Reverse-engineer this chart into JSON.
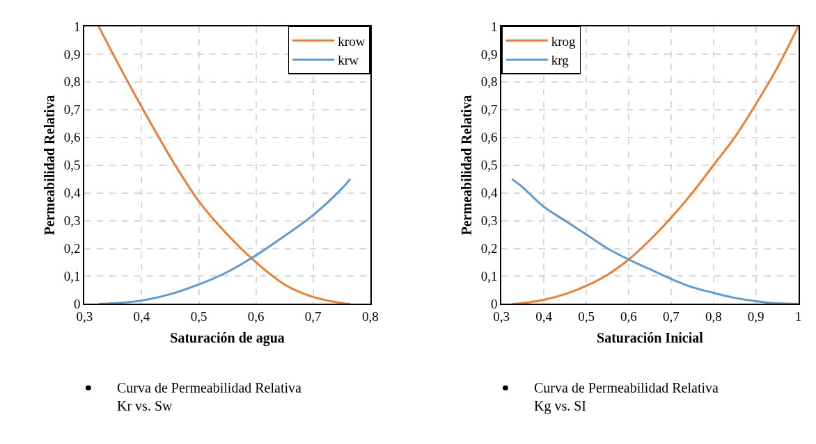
{
  "chart_data": [
    {
      "type": "line",
      "xlabel": "Saturación de agua",
      "ylabel": "Permeabilidad Relativa",
      "xlim": [
        0.3,
        0.8
      ],
      "xticks": [
        {
          "value": 0.3,
          "label": "0,3"
        },
        {
          "value": 0.4,
          "label": "0,4"
        },
        {
          "value": 0.5,
          "label": "0,5"
        },
        {
          "value": 0.6,
          "label": "0,6"
        },
        {
          "value": 0.7,
          "label": "0,7"
        },
        {
          "value": 0.8,
          "label": "0,8"
        }
      ],
      "ylim": [
        0,
        1
      ],
      "yticks": [
        0,
        {
          "value": 0.1,
          "label": "0,1"
        },
        {
          "value": 0.2,
          "label": "0,2"
        },
        {
          "value": 0.3,
          "label": "0,3"
        },
        {
          "value": 0.4,
          "label": "0,4"
        },
        {
          "value": 0.5,
          "label": "0,5"
        },
        {
          "value": 0.6,
          "label": "0,6"
        },
        {
          "value": 0.7,
          "label": "0,7"
        },
        {
          "value": 0.8,
          "label": "0,8"
        },
        {
          "value": 0.9,
          "label": "0,9"
        },
        1
      ],
      "grid": true,
      "legend": "top right",
      "line_style": "solid",
      "marker": "none",
      "x": [
        0.325,
        0.35,
        0.4,
        0.45,
        0.5,
        0.55,
        0.6,
        0.65,
        0.7,
        0.75,
        0.765
      ],
      "series": [
        {
          "name": "krow",
          "color": "#ed7d31",
          "values": [
            1.0,
            0.9,
            0.71,
            0.53,
            0.37,
            0.25,
            0.15,
            0.07,
            0.025,
            0.003,
            0.0
          ]
        },
        {
          "name": "krw",
          "color": "#5b9bd5",
          "values": [
            0.0,
            0.002,
            0.012,
            0.035,
            0.07,
            0.115,
            0.175,
            0.245,
            0.32,
            0.415,
            0.45
          ]
        }
      ],
      "annotations": [
        "Curva de Permeabilidad Relativa\nKr vs. Sw"
      ]
    },
    {
      "type": "line",
      "xlabel": "Saturación Inicial",
      "ylabel": "Permeabilidad Relativa",
      "xlim": [
        0.3,
        1
      ],
      "xticks": [
        {
          "value": 0.3,
          "label": "0,3"
        },
        {
          "value": 0.4,
          "label": "0,4"
        },
        {
          "value": 0.5,
          "label": "0,5"
        },
        {
          "value": 0.6,
          "label": "0,6"
        },
        {
          "value": 0.7,
          "label": "0,7"
        },
        {
          "value": 0.8,
          "label": "0,8"
        },
        {
          "value": 0.9,
          "label": "0,9"
        },
        1
      ],
      "ylim": [
        0,
        1
      ],
      "yticks": [
        0,
        {
          "value": 0.1,
          "label": "0,1"
        },
        {
          "value": 0.2,
          "label": "0,2"
        },
        {
          "value": 0.3,
          "label": "0,3"
        },
        {
          "value": 0.4,
          "label": "0,4"
        },
        {
          "value": 0.5,
          "label": "0,5"
        },
        {
          "value": 0.6,
          "label": "0,6"
        },
        {
          "value": 0.7,
          "label": "0,7"
        },
        {
          "value": 0.8,
          "label": "0,8"
        },
        {
          "value": 0.9,
          "label": "0,9"
        },
        1
      ],
      "grid": true,
      "legend": "top left",
      "line_style": "solid",
      "marker": "none",
      "x": [
        0.325,
        0.35,
        0.4,
        0.45,
        0.5,
        0.55,
        0.6,
        0.65,
        0.7,
        0.75,
        0.8,
        0.85,
        0.9,
        0.95,
        1.0
      ],
      "series": [
        {
          "name": "krog",
          "color": "#ed7d31",
          "values": [
            0.0,
            0.003,
            0.015,
            0.035,
            0.065,
            0.105,
            0.16,
            0.23,
            0.31,
            0.4,
            0.5,
            0.6,
            0.72,
            0.85,
            1.0
          ]
        },
        {
          "name": "krg",
          "color": "#5b9bd5",
          "values": [
            0.45,
            0.42,
            0.35,
            0.3,
            0.25,
            0.2,
            0.16,
            0.125,
            0.09,
            0.06,
            0.04,
            0.022,
            0.01,
            0.002,
            0.0
          ]
        }
      ],
      "annotations": [
        "Curva de Permeabilidad Relativa\nKg vs. SI"
      ]
    }
  ]
}
